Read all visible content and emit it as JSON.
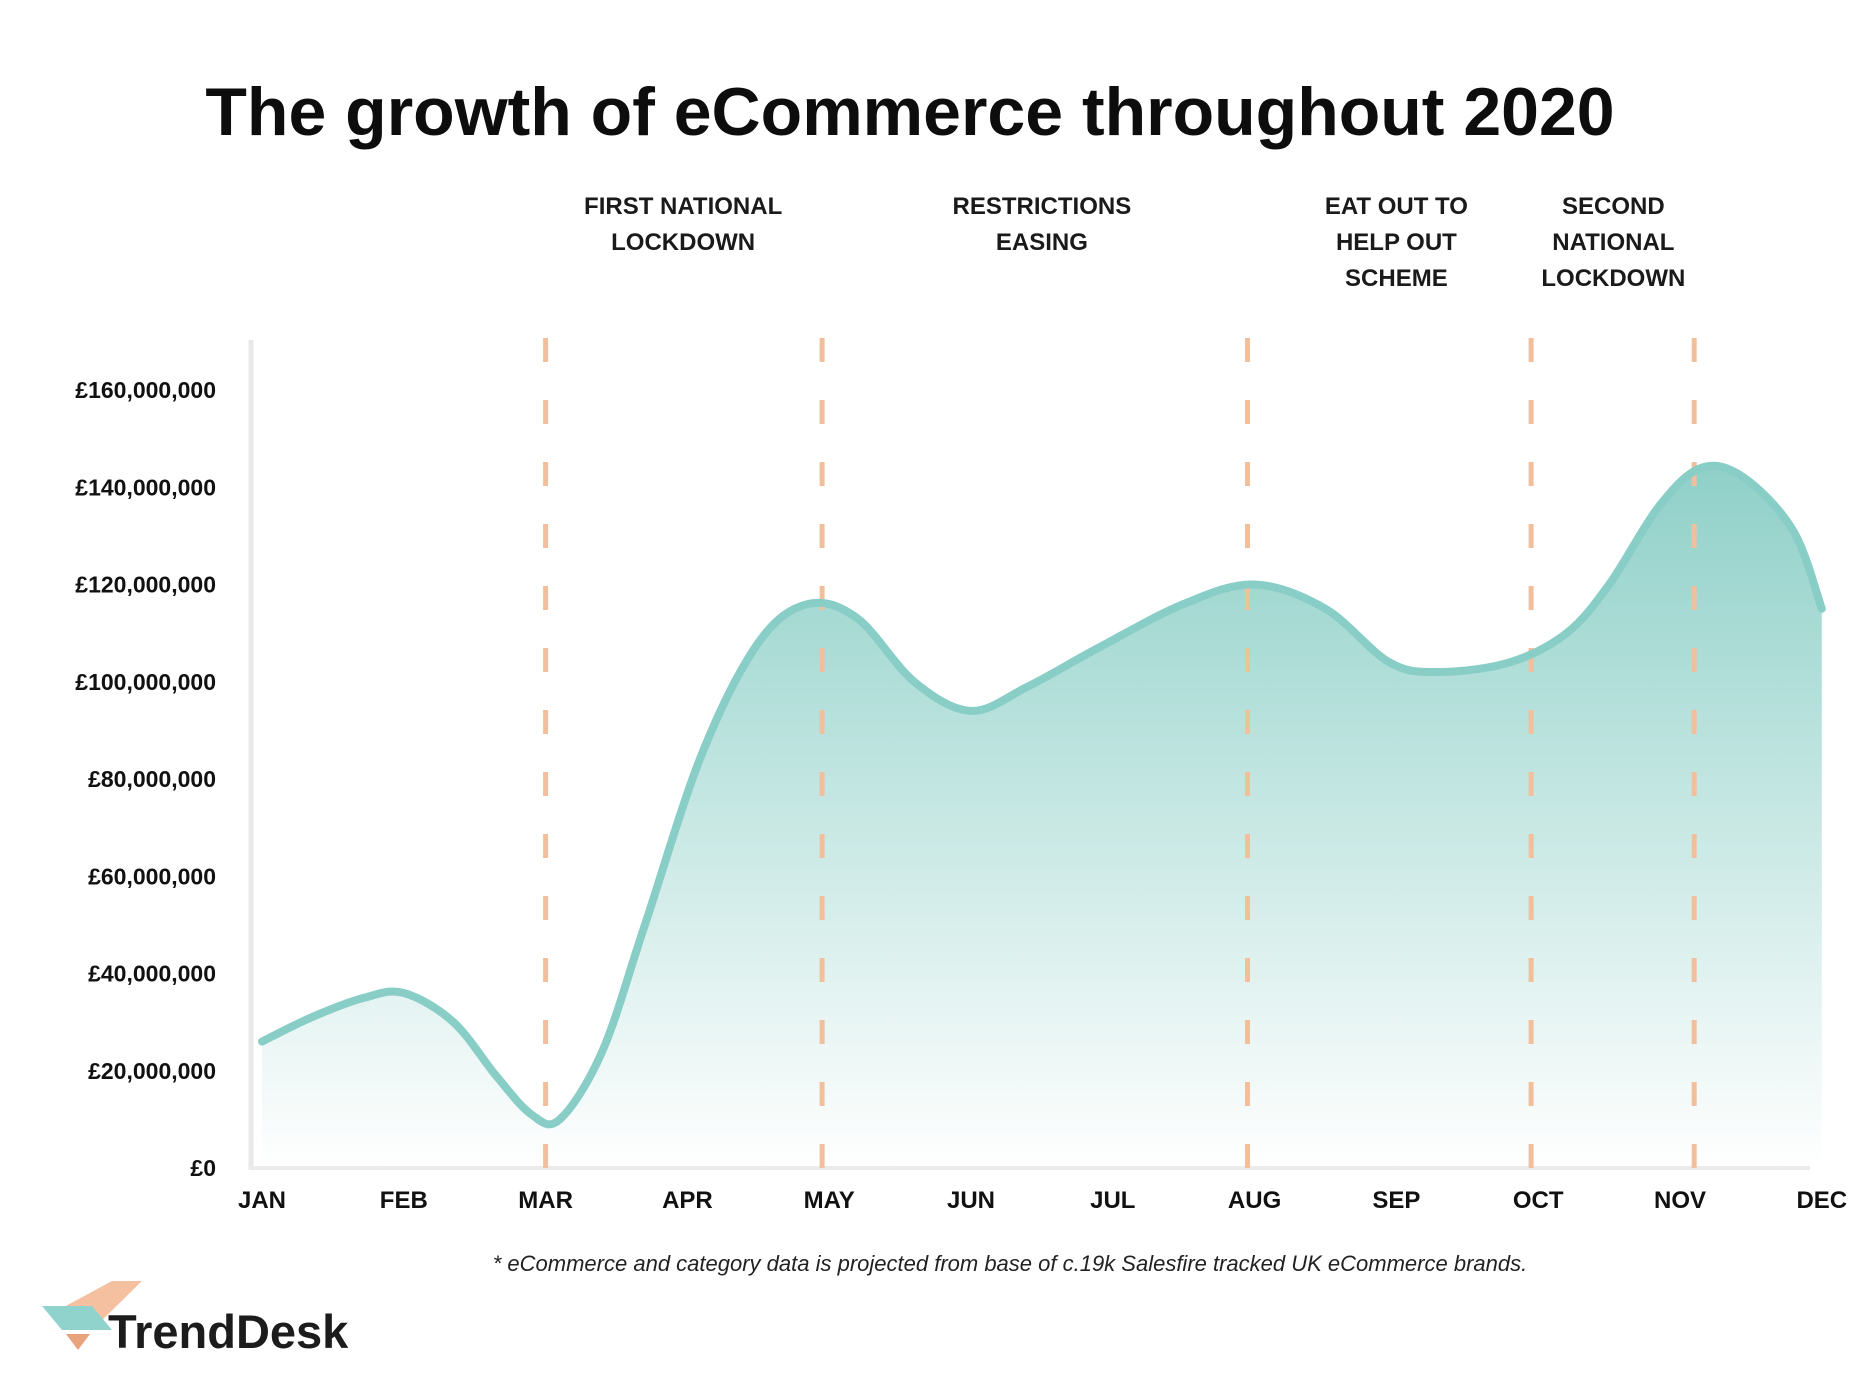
{
  "chart_data": {
    "type": "area",
    "title": "The growth of eCommerce throughout 2020",
    "xlabel": "",
    "ylabel": "",
    "categories": [
      "JAN",
      "FEB",
      "MAR",
      "APR",
      "MAY",
      "JUN",
      "JUL",
      "AUG",
      "SEP",
      "OCT",
      "NOV",
      "DEC"
    ],
    "y_tick_values": [
      0,
      20000000,
      40000000,
      60000000,
      80000000,
      100000000,
      120000000,
      140000000,
      160000000
    ],
    "y_tick_labels": [
      "£0",
      "£20,000,000",
      "£40,000,000",
      "£60,000,000",
      "£80,000,000",
      "£100,000,000",
      "£120,000,000",
      "£140,000,000",
      "£160,000,000"
    ],
    "ylim": [
      0,
      170000000
    ],
    "grid": false,
    "legend": "none",
    "series": [
      {
        "points": [
          {
            "x": 0.0,
            "y": 26000000
          },
          {
            "x": 0.35,
            "y": 31000000
          },
          {
            "x": 0.72,
            "y": 35000000
          },
          {
            "x": 1.0,
            "y": 36000000
          },
          {
            "x": 1.35,
            "y": 30000000
          },
          {
            "x": 1.65,
            "y": 19000000
          },
          {
            "x": 1.9,
            "y": 11000000
          },
          {
            "x": 2.1,
            "y": 10000000
          },
          {
            "x": 2.4,
            "y": 24000000
          },
          {
            "x": 2.7,
            "y": 50000000
          },
          {
            "x": 3.1,
            "y": 85000000
          },
          {
            "x": 3.5,
            "y": 108000000
          },
          {
            "x": 3.85,
            "y": 116000000
          },
          {
            "x": 4.2,
            "y": 113000000
          },
          {
            "x": 4.6,
            "y": 100000000
          },
          {
            "x": 5.0,
            "y": 94000000
          },
          {
            "x": 5.4,
            "y": 99000000
          },
          {
            "x": 5.9,
            "y": 107000000
          },
          {
            "x": 6.5,
            "y": 116000000
          },
          {
            "x": 7.0,
            "y": 120000000
          },
          {
            "x": 7.5,
            "y": 115000000
          },
          {
            "x": 7.95,
            "y": 104000000
          },
          {
            "x": 8.3,
            "y": 102000000
          },
          {
            "x": 8.8,
            "y": 104000000
          },
          {
            "x": 9.2,
            "y": 110000000
          },
          {
            "x": 9.5,
            "y": 120000000
          },
          {
            "x": 9.85,
            "y": 136000000
          },
          {
            "x": 10.15,
            "y": 144000000
          },
          {
            "x": 10.45,
            "y": 142000000
          },
          {
            "x": 10.8,
            "y": 131000000
          },
          {
            "x": 11.0,
            "y": 115000000
          }
        ]
      }
    ],
    "events": [
      {
        "x": 2.0,
        "label": ""
      },
      {
        "x": 3.95,
        "label": ""
      },
      {
        "x": 6.95,
        "label": ""
      },
      {
        "x": 8.95,
        "label": ""
      },
      {
        "x": 10.1,
        "label": ""
      }
    ],
    "annotations": [
      {
        "x": 2.97,
        "lines": [
          "FIRST NATIONAL",
          "LOCKDOWN"
        ]
      },
      {
        "x": 5.5,
        "lines": [
          "RESTRICTIONS",
          "EASING"
        ]
      },
      {
        "x": 8.0,
        "lines": [
          "EAT OUT TO",
          "HELP OUT",
          "SCHEME"
        ]
      },
      {
        "x": 9.53,
        "lines": [
          "SECOND",
          "NATIONAL",
          "LOCKDOWN"
        ]
      }
    ],
    "footnote": "* eCommerce and category data is projected from base of c.19k Salesfire tracked UK eCommerce brands.",
    "colors": {
      "line": "#88cdc6",
      "fill_top": "#8fd0c8",
      "fill_bottom": "#ffffff",
      "event_line": "#f2bf9c",
      "axis": "#e8e8e8"
    }
  },
  "brand": {
    "name": "TrendDesk",
    "colors": {
      "teal": "#8fd3cc",
      "peach": "#f4c0a0",
      "orange": "#e8a37c",
      "dark": "#1c1c1c"
    }
  }
}
